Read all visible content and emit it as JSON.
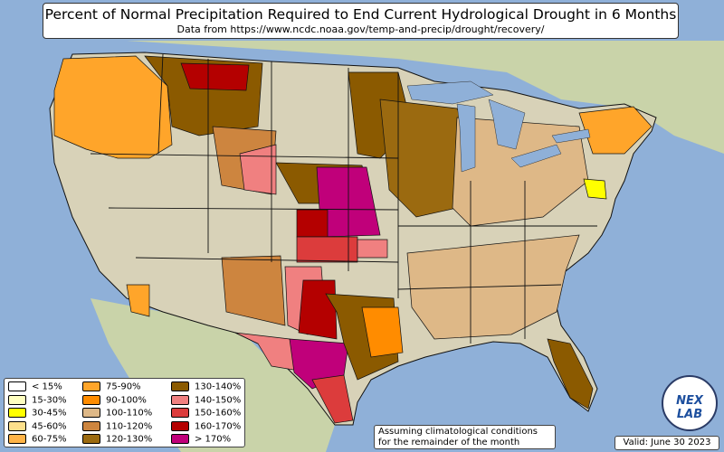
{
  "title": "Percent of Normal Precipitation Required to End Current Hydrological Drought in 6 Months",
  "subtitle": "Data from https://www.ncdc.noaa.gov/temp-and-precip/drought/recovery/",
  "note_line1": "Assuming climatological conditions",
  "note_line2": "for the remainder of the month",
  "valid": "Valid: June 30 2023",
  "logo_text": "NEX LAB",
  "colors": {
    "ocean": "#8fb0d8",
    "land_us": "#d8d2b8",
    "land_other": "#c9d3a9",
    "state_border": "#111111",
    "lake": "#8fb0d8"
  },
  "legend": [
    {
      "label": "< 15%",
      "color": "#ffffff"
    },
    {
      "label": "15-30%",
      "color": "#ffffc0"
    },
    {
      "label": "30-45%",
      "color": "#ffff00"
    },
    {
      "label": "45-60%",
      "color": "#fde08c"
    },
    {
      "label": "60-75%",
      "color": "#ffb347"
    },
    {
      "label": "75-90%",
      "color": "#ffa52a"
    },
    {
      "label": "90-100%",
      "color": "#ff8c00"
    },
    {
      "label": "100-110%",
      "color": "#deb887"
    },
    {
      "label": "110-120%",
      "color": "#cd853f"
    },
    {
      "label": "120-130%",
      "color": "#9b6a10"
    },
    {
      "label": "130-140%",
      "color": "#8b5a00"
    },
    {
      "label": "140-150%",
      "color": "#f08080"
    },
    {
      "label": "150-160%",
      "color": "#dc3c3c"
    },
    {
      "label": "160-170%",
      "color": "#b40000"
    },
    {
      "label": "> 170%",
      "color": "#c0007a"
    }
  ],
  "regions": [
    {
      "name": "pacific-northwest",
      "category": "60-75%"
    },
    {
      "name": "northern-rockies",
      "category": "130-140%"
    },
    {
      "name": "montana-north",
      "category": "160-170%"
    },
    {
      "name": "northern-plains",
      "category": "130-140%"
    },
    {
      "name": "central-plains",
      "category": "> 170%"
    },
    {
      "name": "kansas",
      "category": "160-170%"
    },
    {
      "name": "southern-plains",
      "category": "150-160%"
    },
    {
      "name": "texas-central",
      "category": "> 170%"
    },
    {
      "name": "texas-west",
      "category": "140-150%"
    },
    {
      "name": "texas-east",
      "category": "130-140%"
    },
    {
      "name": "upper-midwest",
      "category": "120-130%"
    },
    {
      "name": "ohio-valley",
      "category": "100-110%"
    },
    {
      "name": "southeast",
      "category": "100-110%"
    },
    {
      "name": "florida",
      "category": "130-140%"
    },
    {
      "name": "delmarva",
      "category": "30-45%"
    },
    {
      "name": "northeast",
      "category": "75-90%"
    }
  ]
}
